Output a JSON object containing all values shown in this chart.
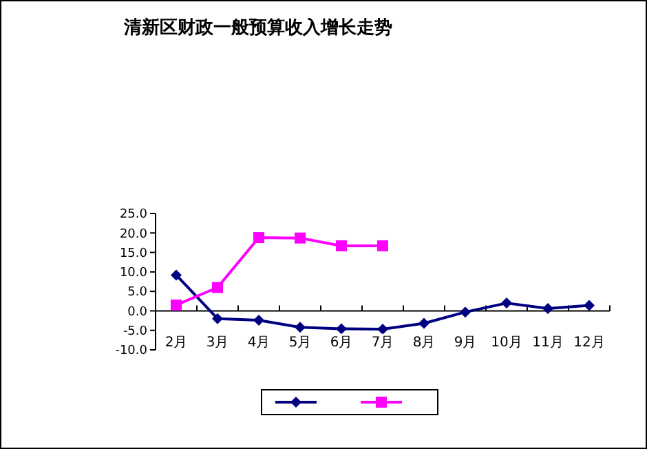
{
  "chart_data": {
    "type": "line",
    "title": "清新区财政一般预算收入增长走势",
    "categories": [
      "2月",
      "3月",
      "4月",
      "5月",
      "6月",
      "7月",
      "8月",
      "9月",
      "10月",
      "11月",
      "12月"
    ],
    "series": [
      {
        "color": "#000080",
        "marker": "diamond",
        "values": [
          9.2,
          -2.0,
          -2.4,
          -4.2,
          -4.6,
          -4.7,
          -3.2,
          -0.3,
          2.0,
          0.6,
          1.4
        ]
      },
      {
        "color": "#ff00ff",
        "marker": "square",
        "values": [
          1.5,
          6.0,
          18.8,
          18.7,
          16.7,
          16.7,
          null,
          null,
          null,
          null,
          null
        ]
      }
    ],
    "ylim": [
      -10,
      25
    ],
    "yticks": [
      {
        "value": -10,
        "label": "-10.0"
      },
      {
        "value": -5,
        "label": "-5.0"
      },
      {
        "value": 0,
        "label": "0.0"
      },
      {
        "value": 5,
        "label": "5.0"
      },
      {
        "value": 10,
        "label": "10.0"
      },
      {
        "value": 15,
        "label": "15.0"
      },
      {
        "value": 20,
        "label": "20.0"
      },
      {
        "value": 25,
        "label": "25.0"
      }
    ],
    "grid": false
  }
}
